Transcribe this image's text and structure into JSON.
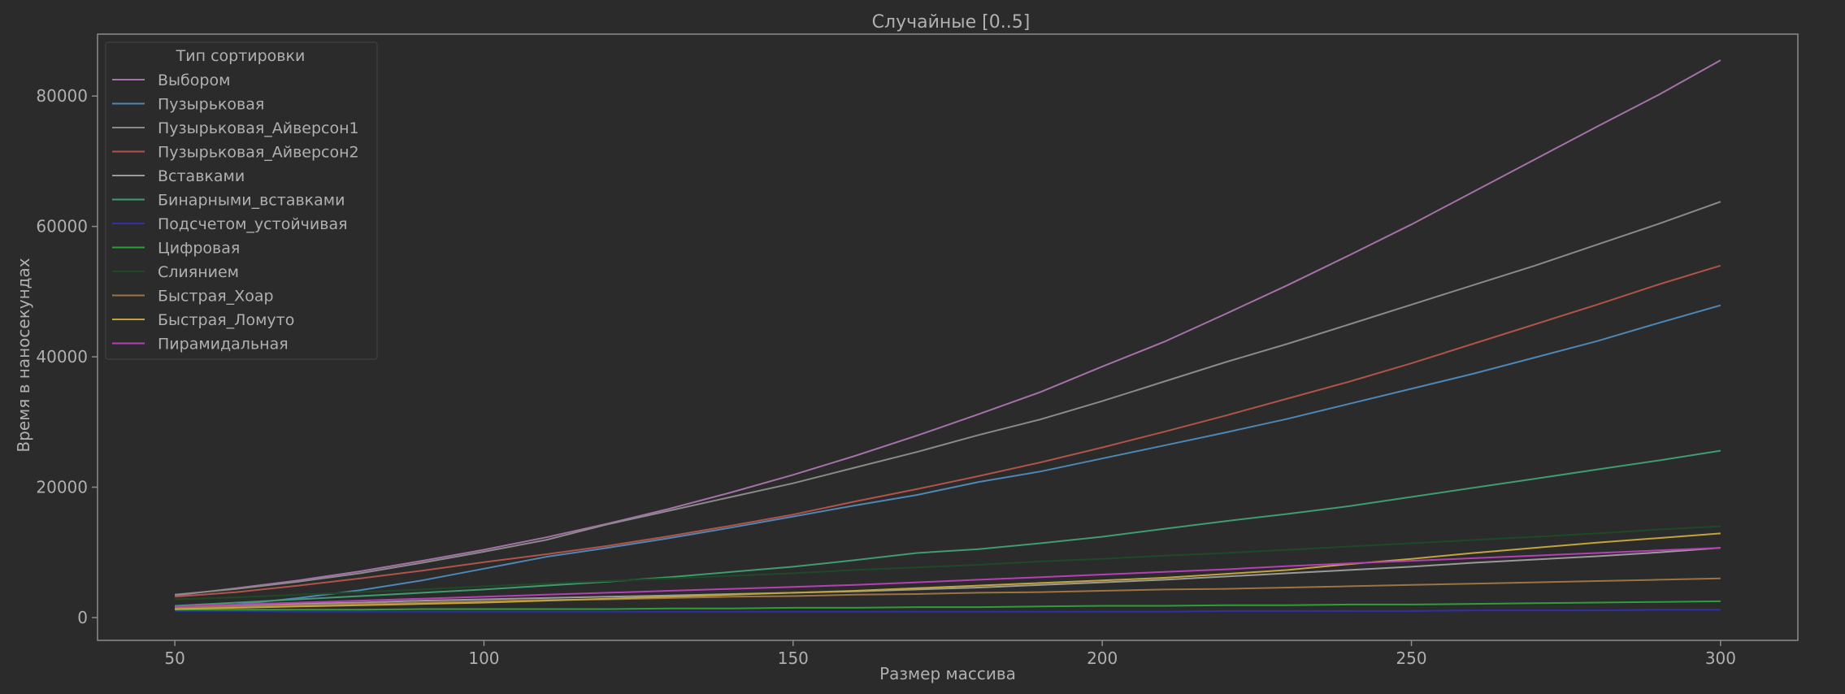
{
  "chart_data": {
    "type": "line",
    "title": "Случайные [0..5]",
    "xlabel": "Размер массива",
    "ylabel": "Время в наносекундах",
    "xlim": [
      37.5,
      312.5
    ],
    "ylim": [
      -3500,
      89500
    ],
    "xticks": [
      50,
      100,
      150,
      200,
      250,
      300
    ],
    "yticks": [
      0,
      20000,
      40000,
      60000,
      80000
    ],
    "grid": false,
    "legend": {
      "title": "Тип сортировки",
      "placement": "top-left"
    },
    "x": [
      50,
      60,
      70,
      80,
      90,
      100,
      110,
      120,
      130,
      140,
      150,
      160,
      170,
      180,
      190,
      200,
      210,
      220,
      230,
      240,
      250,
      260,
      270,
      280,
      290,
      300
    ],
    "series": [
      {
        "name": "Выбором",
        "color": "#a571a8",
        "values": [
          3400,
          4500,
          5700,
          7100,
          8700,
          10400,
          12300,
          14400,
          16700,
          19200,
          21900,
          24800,
          27900,
          31200,
          34600,
          38500,
          42300,
          46600,
          51000,
          55600,
          60300,
          65300,
          70300,
          75300,
          80200,
          85500
        ]
      },
      {
        "name": "Пузырьковая",
        "color": "#4d87b5",
        "values": [
          1400,
          2000,
          3000,
          4200,
          5700,
          7500,
          9300,
          10700,
          12200,
          13800,
          15500,
          17200,
          18800,
          20800,
          22400,
          24400,
          26400,
          28400,
          30500,
          32800,
          35100,
          37400,
          39900,
          42400,
          45200,
          47900
        ]
      },
      {
        "name": "Пузырьковая_Айверсон1",
        "color": "#8a8a8a",
        "values": [
          3500,
          4400,
          5500,
          6800,
          8400,
          10100,
          11900,
          14300,
          16400,
          18500,
          20600,
          23000,
          25400,
          28000,
          30400,
          33200,
          36200,
          39200,
          42000,
          45000,
          48000,
          51000,
          54000,
          57200,
          60400,
          63800
        ]
      },
      {
        "name": "Пузырьковая_Айверсон2",
        "color": "#b05349",
        "values": [
          3200,
          3900,
          4900,
          6000,
          7200,
          8500,
          9700,
          11000,
          12500,
          14100,
          15800,
          17800,
          19700,
          21700,
          23800,
          26100,
          28500,
          31000,
          33600,
          36200,
          39000,
          42000,
          45000,
          48000,
          51100,
          54000
        ]
      },
      {
        "name": "Вставками",
        "color": "#9a9a9a",
        "values": [
          1600,
          1800,
          2100,
          2300,
          2600,
          2800,
          3000,
          3200,
          3400,
          3600,
          3800,
          4000,
          4300,
          4600,
          5000,
          5400,
          5800,
          6300,
          6800,
          7300,
          7800,
          8400,
          8900,
          9400,
          10000,
          10700
        ]
      },
      {
        "name": "Бинарными_вставками",
        "color": "#3f9c70",
        "values": [
          1800,
          2300,
          2800,
          3300,
          3800,
          4300,
          4900,
          5500,
          6200,
          7000,
          7800,
          8800,
          9900,
          10500,
          11400,
          12400,
          13600,
          14800,
          15900,
          17100,
          18500,
          19900,
          21300,
          22700,
          24100,
          25600
        ]
      },
      {
        "name": "Подсчетом_устойчивая",
        "color": "#2f2fa8",
        "values": [
          1000,
          1000,
          900,
          900,
          900,
          900,
          900,
          900,
          900,
          900,
          900,
          900,
          900,
          900,
          900,
          900,
          900,
          1000,
          1000,
          1000,
          1000,
          1100,
          1100,
          1100,
          1200,
          1200
        ]
      },
      {
        "name": "Цифровая",
        "color": "#2e9e3a",
        "values": [
          1200,
          1200,
          1200,
          1200,
          1300,
          1300,
          1300,
          1300,
          1400,
          1400,
          1500,
          1500,
          1600,
          1600,
          1700,
          1800,
          1800,
          1900,
          1900,
          2000,
          2000,
          2100,
          2200,
          2300,
          2400,
          2500
        ]
      },
      {
        "name": "Слиянием",
        "color": "#1d4a26",
        "values": [
          2800,
          3100,
          3500,
          3900,
          4300,
          4800,
          5200,
          5600,
          6000,
          6400,
          6800,
          7300,
          7700,
          8100,
          8600,
          9000,
          9500,
          9900,
          10400,
          10900,
          11400,
          11900,
          12400,
          12900,
          13500,
          14000
        ]
      },
      {
        "name": "Быстрая_Хоар",
        "color": "#9c7443",
        "values": [
          1500,
          1700,
          1900,
          2100,
          2300,
          2500,
          2700,
          2800,
          3000,
          3200,
          3300,
          3500,
          3600,
          3800,
          3900,
          4100,
          4300,
          4400,
          4600,
          4800,
          5000,
          5200,
          5400,
          5600,
          5800,
          6000
        ]
      },
      {
        "name": "Быстрая_Ломуто",
        "color": "#c2a53a",
        "values": [
          1300,
          1500,
          1700,
          1900,
          2100,
          2300,
          2600,
          2900,
          3200,
          3500,
          3800,
          4100,
          4500,
          4900,
          5300,
          5700,
          6100,
          6700,
          7300,
          8200,
          9000,
          9900,
          10700,
          11500,
          12200,
          12900
        ]
      },
      {
        "name": "Пирамидальная",
        "color": "#b73fb6",
        "values": [
          1700,
          2000,
          2300,
          2600,
          2900,
          3200,
          3500,
          3800,
          4100,
          4400,
          4700,
          5000,
          5400,
          5800,
          6200,
          6600,
          7000,
          7400,
          7900,
          8300,
          8700,
          9100,
          9500,
          9900,
          10300,
          10700
        ]
      }
    ]
  }
}
